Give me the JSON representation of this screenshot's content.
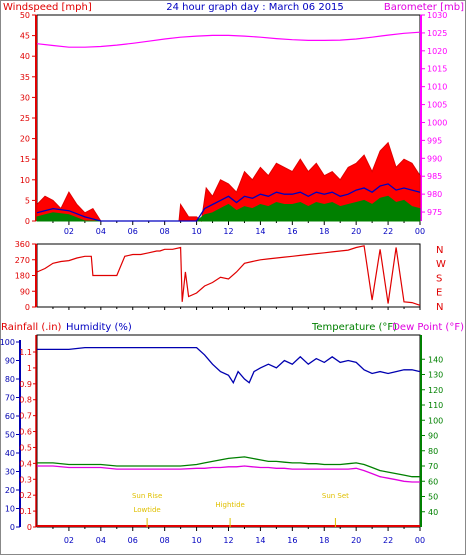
{
  "title": "24 hour graph day : March 06 2015",
  "colors": {
    "wind": "#e00000",
    "gust_fill": "#ff0000",
    "avg_wind": "#0000c0",
    "wind_green": "#008000",
    "baro": "#ff00ff",
    "dir": "#e00000",
    "humidity": "#0000b0",
    "temp": "#008000",
    "dew": "#e000e0",
    "rain": "#e00000",
    "sun_marker": "#e0c000",
    "axis_bg": "#ffffff",
    "frame": "#000000"
  },
  "chart_data": [
    {
      "type": "line",
      "name": "wind-barometer",
      "ylabel_left": "Windspeed [mph]",
      "ylabel_right": "Barometer [mb]",
      "left_ticks": [
        0,
        5,
        10,
        15,
        20,
        25,
        30,
        35,
        40,
        45,
        50
      ],
      "right_ticks": [
        975,
        980,
        985,
        990,
        995,
        1000,
        1005,
        1010,
        1015,
        1020,
        1025,
        1030
      ],
      "ylim_left": [
        0,
        50
      ],
      "ylim_right": [
        972.5,
        1030
      ],
      "xlim": [
        0,
        24
      ],
      "x_ticks": [
        "02",
        "04",
        "06",
        "08",
        "10",
        "12",
        "14",
        "16",
        "18",
        "20",
        "22",
        "00"
      ],
      "series": [
        {
          "name": "barometer",
          "x": [
            0,
            1,
            2,
            3,
            4,
            5,
            6,
            7,
            8,
            9,
            10,
            11,
            12,
            13,
            14,
            15,
            16,
            17,
            18,
            19,
            20,
            21,
            22,
            23,
            24
          ],
          "values": [
            1022,
            1021.5,
            1021,
            1021,
            1021.2,
            1021.6,
            1022.1,
            1022.7,
            1023.3,
            1023.8,
            1024.1,
            1024.3,
            1024.3,
            1024.1,
            1023.8,
            1023.4,
            1023.1,
            1022.9,
            1022.9,
            1023.0,
            1023.3,
            1023.8,
            1024.4,
            1024.9,
            1025.2
          ]
        },
        {
          "name": "gust",
          "x": [
            0,
            0.5,
            1,
            1.5,
            2,
            2.5,
            3,
            3.5,
            4,
            5,
            6,
            7,
            8,
            8.9,
            9,
            9.5,
            10,
            10.3,
            10.6,
            11,
            11.5,
            12,
            12.5,
            13,
            13.5,
            14,
            14.5,
            15,
            15.5,
            16,
            16.5,
            17,
            17.5,
            18,
            18.5,
            19,
            19.5,
            20,
            20.5,
            21,
            21.5,
            22,
            22.5,
            23,
            23.5,
            24
          ],
          "values": [
            4,
            6,
            5,
            3,
            7,
            4,
            2,
            3,
            0,
            0,
            0,
            0,
            0,
            0,
            4,
            1,
            1,
            0,
            8,
            6,
            10,
            9,
            7,
            12,
            10,
            13,
            11,
            14,
            13,
            12,
            15,
            12,
            14,
            11,
            12,
            10,
            13,
            14,
            16,
            12,
            17,
            19,
            13,
            15,
            14,
            11
          ]
        },
        {
          "name": "average",
          "x": [
            0,
            1,
            2,
            3,
            4,
            5,
            6,
            7,
            8,
            9,
            10,
            10.5,
            11,
            11.5,
            12,
            12.5,
            13,
            13.5,
            14,
            14.5,
            15,
            15.5,
            16,
            16.5,
            17,
            17.5,
            18,
            18.5,
            19,
            19.5,
            20,
            20.5,
            21,
            21.5,
            22,
            22.5,
            23,
            23.5,
            24
          ],
          "values": [
            2,
            3,
            2.5,
            1,
            0,
            0,
            0,
            0,
            0,
            0,
            0,
            3,
            4,
            5,
            6,
            4.5,
            6,
            5.5,
            6.5,
            6,
            7,
            6.5,
            6.5,
            7,
            6,
            7,
            6.5,
            7,
            6,
            6.5,
            7.5,
            8,
            7,
            8.5,
            9,
            7.5,
            8,
            7.5,
            7
          ]
        },
        {
          "name": "low",
          "x": [
            0,
            1,
            2,
            3,
            4,
            5,
            6,
            7,
            8,
            9,
            10,
            10.5,
            11,
            11.5,
            12,
            12.5,
            13,
            13.5,
            14,
            14.5,
            15,
            15.5,
            16,
            16.5,
            17,
            17.5,
            18,
            18.5,
            19,
            19.5,
            20,
            20.5,
            21,
            21.5,
            22,
            22.5,
            23,
            23.5,
            24
          ],
          "values": [
            1,
            2,
            1.5,
            0,
            0,
            0,
            0,
            0,
            0,
            0,
            0,
            1.5,
            2,
            3,
            4,
            2.5,
            3.5,
            3,
            4,
            3.5,
            4.5,
            4,
            4,
            4.5,
            3.5,
            4.5,
            4,
            4.5,
            3.5,
            4,
            4.5,
            5,
            4,
            5.5,
            6,
            4.5,
            5,
            3.5,
            3
          ]
        }
      ]
    },
    {
      "type": "line",
      "name": "wind-direction",
      "left_ticks": [
        0,
        90,
        180,
        270,
        360
      ],
      "compass": [
        "N",
        "W",
        "S",
        "E",
        "N"
      ],
      "ylim": [
        0,
        360
      ],
      "xlim": [
        0,
        24
      ],
      "series": [
        {
          "name": "direction",
          "x": [
            0,
            0.5,
            1,
            1.5,
            2,
            2.5,
            3,
            3.4,
            3.5,
            3.7,
            4,
            4.5,
            5,
            5.5,
            6,
            6.5,
            7,
            7.5,
            7.7,
            8,
            8.5,
            9,
            9.1,
            9.3,
            9.5,
            10,
            10.5,
            11,
            11.5,
            12,
            12.5,
            13,
            13.5,
            14,
            14.5,
            15,
            15.5,
            16,
            16.5,
            17,
            17.5,
            18,
            18.5,
            19,
            19.5,
            20,
            20.5,
            21,
            21.5,
            22,
            22.5,
            23,
            23.5,
            24
          ],
          "values": [
            200,
            220,
            250,
            260,
            265,
            280,
            290,
            290,
            180,
            180,
            180,
            180,
            180,
            290,
            300,
            300,
            310,
            320,
            320,
            330,
            330,
            340,
            30,
            200,
            60,
            80,
            120,
            140,
            170,
            160,
            200,
            250,
            260,
            270,
            275,
            280,
            285,
            290,
            295,
            300,
            305,
            310,
            315,
            320,
            325,
            340,
            350,
            40,
            330,
            20,
            340,
            30,
            25,
            10
          ]
        }
      ]
    },
    {
      "type": "line",
      "name": "humidity-temperature-rain",
      "ylabel_rain": "Rainfall (.in)",
      "ylabel_humidity": "Humidity (%)",
      "ylabel_temp": "Temperature (°F)",
      "ylabel_dew": "Dew Point (°F)",
      "rain_ticks": [
        "0",
        "0.1",
        "0.2",
        "0.3",
        "0.4",
        "0.5",
        "0.6",
        "0.7",
        "0.8",
        "0.9",
        "1",
        "1.1"
      ],
      "humidity_ticks": [
        0,
        10,
        20,
        30,
        40,
        50,
        60,
        70,
        80,
        90,
        100
      ],
      "temp_ticks": [
        40,
        50,
        60,
        70,
        80,
        90,
        100,
        110,
        120,
        130,
        140
      ],
      "ylim_humidity": [
        0,
        100
      ],
      "ylim_temp": [
        30,
        150
      ],
      "xlim": [
        0,
        24
      ],
      "annotations": [
        {
          "text": "Sun Rise",
          "x": 6.9
        },
        {
          "text": "Lowtide",
          "x": 6.9
        },
        {
          "text": "Hightide",
          "x": 12.1
        },
        {
          "text": "Sun Set",
          "x": 18.7
        }
      ],
      "series": [
        {
          "name": "humidity",
          "x": [
            0,
            1,
            2,
            3,
            4,
            5,
            6,
            7,
            8,
            9,
            10,
            10.5,
            11,
            11.5,
            12,
            12.3,
            12.6,
            13,
            13.3,
            13.6,
            14,
            14.5,
            15,
            15.5,
            16,
            16.5,
            17,
            17.5,
            18,
            18.5,
            19,
            19.5,
            20,
            20.5,
            21,
            21.5,
            22,
            22.5,
            23,
            23.5,
            24
          ],
          "values": [
            96,
            96,
            96,
            97,
            97,
            97,
            97,
            97,
            97,
            97,
            97,
            93,
            88,
            84,
            82,
            78,
            84,
            80,
            78,
            84,
            86,
            88,
            86,
            90,
            88,
            92,
            88,
            91,
            89,
            92,
            89,
            90,
            89,
            85,
            83,
            84,
            83,
            84,
            85,
            85,
            84
          ]
        },
        {
          "name": "temperature",
          "x": [
            0,
            1,
            2,
            3,
            4,
            5,
            6,
            7,
            8,
            9,
            10,
            10.5,
            11,
            11.5,
            12,
            12.5,
            13,
            13.5,
            14,
            14.5,
            15,
            15.5,
            16,
            16.5,
            17,
            17.5,
            18,
            18.5,
            19,
            19.5,
            20,
            20.5,
            21,
            21.5,
            22,
            22.5,
            23,
            23.5,
            24
          ],
          "values": [
            72,
            72,
            71,
            71,
            71,
            70,
            70,
            70,
            70,
            70,
            71,
            72,
            73,
            74,
            75,
            75.5,
            76,
            75,
            74,
            73,
            73,
            72.5,
            72,
            72,
            71.5,
            71.5,
            71,
            71,
            71,
            71.5,
            72,
            71,
            69,
            67,
            66,
            65,
            64,
            63,
            63
          ]
        },
        {
          "name": "dewpoint",
          "x": [
            0,
            1,
            2,
            3,
            4,
            5,
            6,
            7,
            8,
            9,
            10,
            10.5,
            11,
            11.5,
            12,
            12.5,
            13,
            13.5,
            14,
            14.5,
            15,
            15.5,
            16,
            16.5,
            17,
            17.5,
            18,
            18.5,
            19,
            19.5,
            20,
            20.5,
            21,
            21.5,
            22,
            22.5,
            23,
            23.5,
            24
          ],
          "values": [
            70,
            70,
            69,
            69,
            69,
            68,
            68,
            68,
            68,
            68,
            68.5,
            68.5,
            69,
            69,
            69.5,
            69.5,
            70,
            69.5,
            69,
            69,
            68.5,
            68.5,
            68,
            68,
            68,
            68,
            68,
            68,
            68,
            68,
            68.5,
            67,
            65,
            63,
            62,
            61,
            60,
            59.5,
            59.5
          ]
        },
        {
          "name": "rain",
          "x": [
            0,
            24
          ],
          "values": [
            0,
            0
          ]
        }
      ]
    }
  ]
}
